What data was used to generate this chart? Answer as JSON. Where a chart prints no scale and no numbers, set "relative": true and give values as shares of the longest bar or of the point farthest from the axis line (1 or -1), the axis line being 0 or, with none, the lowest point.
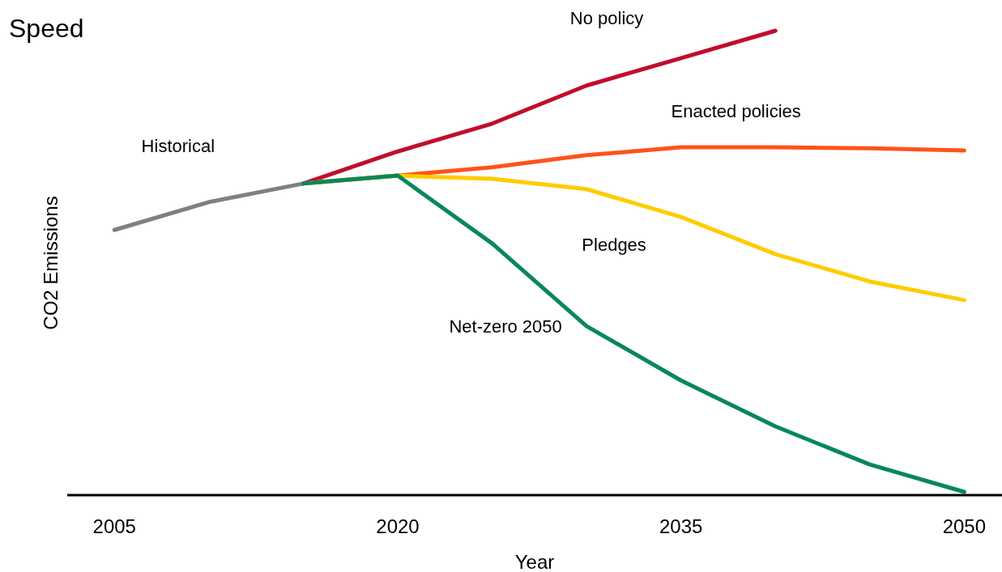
{
  "chart_data": {
    "type": "line",
    "title": "Speed",
    "xlabel": "Year",
    "ylabel": "CO2 Emissions",
    "relative": true,
    "xlim": [
      2002.5,
      2052
    ],
    "xticks": [
      2005,
      2020,
      2035,
      2050
    ],
    "marker": "none",
    "line_style": "solid",
    "series": [
      {
        "name": "Historical",
        "color": "#808080",
        "x": [
          2005,
          2010,
          2015
        ],
        "values": [
          0.571,
          0.631,
          0.671
        ]
      },
      {
        "name": "No policy",
        "color": "#c00d2d",
        "x": [
          2015,
          2020,
          2025,
          2030,
          2035,
          2040
        ],
        "values": [
          0.671,
          0.74,
          0.8,
          0.882,
          0.941,
          1.0
        ]
      },
      {
        "name": "Enacted policies",
        "color": "#ff5319",
        "x": [
          2015,
          2020,
          2025,
          2030,
          2035,
          2040,
          2045,
          2050
        ],
        "values": [
          0.671,
          0.688,
          0.706,
          0.732,
          0.749,
          0.749,
          0.747,
          0.742
        ]
      },
      {
        "name": "Pledges",
        "color": "#ffcc00",
        "x": [
          2015,
          2020,
          2025,
          2030,
          2035,
          2040,
          2045,
          2050
        ],
        "values": [
          0.671,
          0.688,
          0.681,
          0.659,
          0.599,
          0.519,
          0.46,
          0.42
        ]
      },
      {
        "name": "Net-zero 2050",
        "color": "#07875b",
        "x": [
          2015,
          2020,
          2025,
          2030,
          2035,
          2040,
          2045,
          2050
        ],
        "values": [
          0.671,
          0.688,
          0.542,
          0.364,
          0.247,
          0.148,
          0.066,
          0.007
        ]
      }
    ]
  }
}
